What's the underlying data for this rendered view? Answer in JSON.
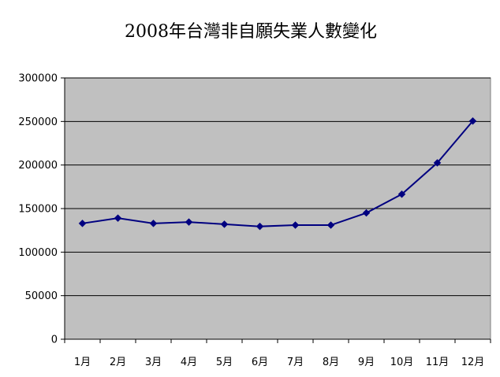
{
  "chart_data": {
    "type": "line",
    "title": "2008年台灣非自願失業人數變化",
    "xlabel": "",
    "ylabel": "",
    "categories": [
      "1月",
      "2月",
      "3月",
      "4月",
      "5月",
      "6月",
      "7月",
      "8月",
      "9月",
      "10月",
      "11月",
      "12月"
    ],
    "series": [
      {
        "values": [
          133000,
          139000,
          133000,
          134500,
          132000,
          129500,
          131000,
          131000,
          145000,
          166500,
          202500,
          250500
        ]
      }
    ],
    "ylim": [
      0,
      300000
    ],
    "yticks": [
      "0",
      "50000",
      "100000",
      "150000",
      "200000",
      "250000",
      "300000"
    ],
    "grid": true,
    "legend": "none",
    "colors": {
      "plot_background": "#c0c0c0",
      "line": "#000080",
      "marker": "#000080",
      "gridline": "#000000",
      "page_background": "#ffffff"
    }
  }
}
